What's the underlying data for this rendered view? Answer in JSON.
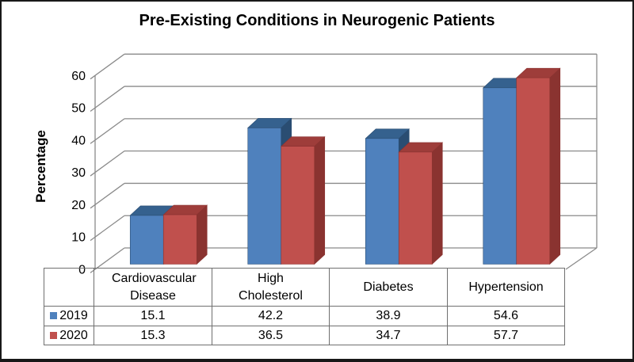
{
  "chart_data": {
    "type": "bar",
    "projection": "3d-clustered-column",
    "title": "Pre-Existing Conditions in Neurogenic Patients",
    "xlabel": "",
    "ylabel": "Percentage",
    "categories": [
      "Cardiovascular Disease",
      "High Cholesterol",
      "Diabetes",
      "Hypertension"
    ],
    "series": [
      {
        "name": "2019",
        "color": "#4f81bd",
        "top_color": "#35618e",
        "side_color": "#2a4d72",
        "values": [
          15.1,
          42.2,
          38.9,
          54.6
        ]
      },
      {
        "name": "2020",
        "color": "#c0504d",
        "top_color": "#9e3d3a",
        "side_color": "#8a3330",
        "values": [
          15.3,
          36.5,
          34.7,
          57.7
        ]
      }
    ],
    "ylim": [
      0,
      60
    ],
    "yticks": [
      0,
      10,
      20,
      30,
      40,
      50,
      60
    ],
    "grid": true,
    "legend_position": "data-table-left",
    "data_table_shown": true
  },
  "colors": {
    "gridline": "#8a8a8a",
    "table_border": "#6f6f6f",
    "background": "#ffffff",
    "outer_border": "#181818"
  }
}
